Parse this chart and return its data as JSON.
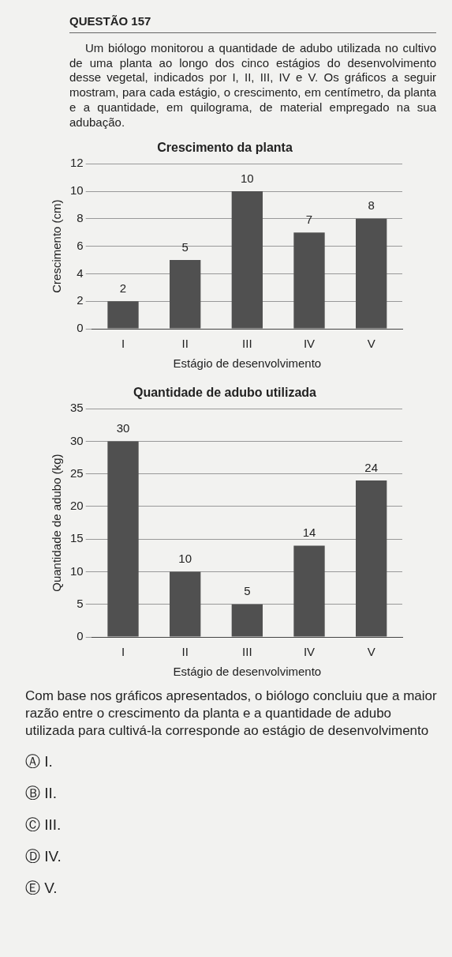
{
  "chart_data": [
    {
      "type": "bar",
      "title": "Crescimento da planta",
      "xlabel": "Estágio de desenvolvimento",
      "ylabel": "Crescimento (cm)",
      "categories": [
        "I",
        "II",
        "III",
        "IV",
        "V"
      ],
      "values": [
        2,
        5,
        10,
        7,
        8
      ],
      "color": "#505050",
      "ylim": [
        0,
        12
      ],
      "yticks": [
        0,
        2,
        4,
        6,
        8,
        10,
        12
      ],
      "grid": "y",
      "data_labels": true,
      "annotations": [
        "QUESTÃO 157",
        "Um biólogo monitorou a quantidade de adubo utilizada no cultivo de uma planta ao longo dos cinco estágios do desenvolvimento desse vegetal, indicados por I, II, III, IV e V. Os gráficos a seguir mostram, para cada estágio, o crescimento, em centímetro, da planta e a quantidade, em quilograma, de material empregado na sua adubação."
      ]
    },
    {
      "type": "bar",
      "title": "Quantidade de adubo utilizada",
      "xlabel": "Estágio de desenvolvimento",
      "ylabel": "Quantidade de adubo (kg)",
      "categories": [
        "I",
        "II",
        "III",
        "IV",
        "V"
      ],
      "values": [
        30,
        10,
        5,
        14,
        24
      ],
      "color": "#505050",
      "ylim": [
        0,
        35
      ],
      "yticks": [
        0,
        5,
        10,
        15,
        20,
        25,
        30,
        35
      ],
      "grid": "y",
      "data_labels": true,
      "annotations": [
        "Com base nos gráficos apresentados, o biólogo concluiu que a maior razão entre o crescimento da planta e a quantidade de adubo utilizada para cultivá-la corresponde ao estágio de desenvolvimento",
        "Ⓐ I.",
        "Ⓑ II.",
        "Ⓒ III.",
        "Ⓓ IV.",
        "Ⓔ V."
      ]
    }
  ]
}
